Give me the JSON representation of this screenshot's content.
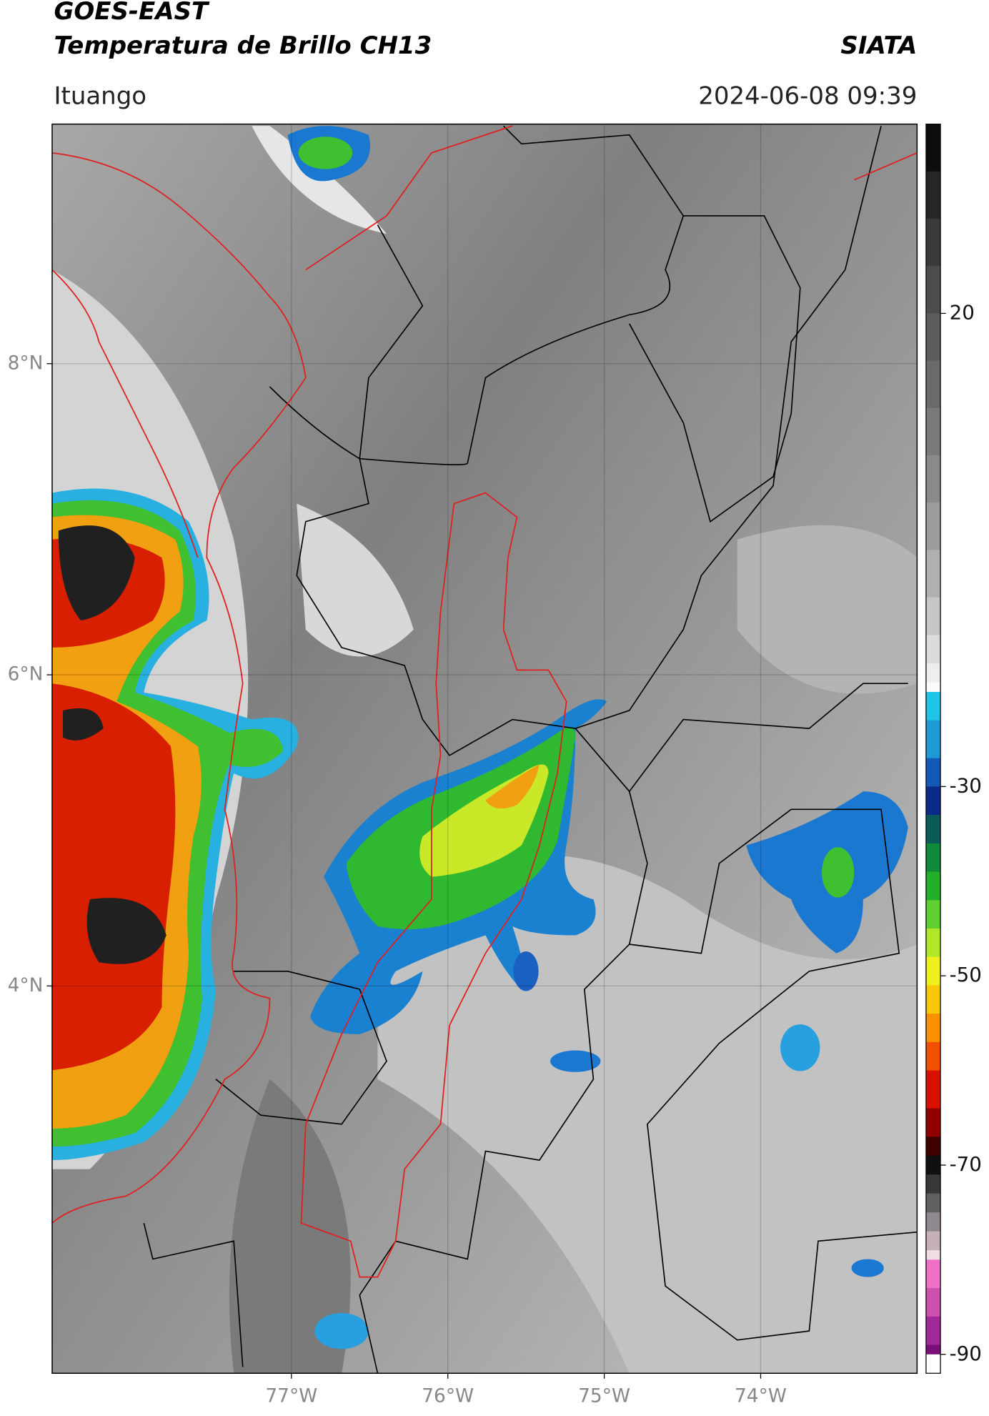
{
  "header": {
    "title": "GOES-EAST",
    "subtitle": "Temperatura de Brillo CH13",
    "source": "SIATA",
    "region": "Ituango",
    "timestamp": "2024-06-08 09:39"
  },
  "map": {
    "xlim": [
      -78.53,
      -73.0
    ],
    "ylim": [
      1.51,
      9.54
    ],
    "xticks": [
      {
        "value": -77,
        "label": "77°W"
      },
      {
        "value": -76,
        "label": "76°W"
      },
      {
        "value": -75,
        "label": "75°W"
      },
      {
        "value": -74,
        "label": "74°W"
      }
    ],
    "yticks": [
      {
        "value": 8,
        "label": "8°N"
      },
      {
        "value": 6,
        "label": "6°N"
      },
      {
        "value": 4,
        "label": "4°N"
      }
    ],
    "grid": true
  },
  "colorbar": {
    "clim": [
      -92,
      40
    ],
    "ticks": [
      20,
      -30,
      -50,
      -70,
      -90
    ],
    "colormap": [
      {
        "value": 40,
        "color": "#0d0d0d"
      },
      {
        "value": 35,
        "color": "#262626"
      },
      {
        "value": 30,
        "color": "#3a3a3a"
      },
      {
        "value": 25,
        "color": "#4c4c4c"
      },
      {
        "value": 20,
        "color": "#5c5c5c"
      },
      {
        "value": 15,
        "color": "#6a6a6a"
      },
      {
        "value": 10,
        "color": "#7a7a7a"
      },
      {
        "value": 5,
        "color": "#8a8a8a"
      },
      {
        "value": 0,
        "color": "#9c9c9c"
      },
      {
        "value": -5,
        "color": "#b0b0b0"
      },
      {
        "value": -10,
        "color": "#c6c6c6"
      },
      {
        "value": -14,
        "color": "#dcdcdc"
      },
      {
        "value": -17,
        "color": "#eeeeee"
      },
      {
        "value": -19,
        "color": "#fbfbfb"
      },
      {
        "value": -20,
        "color": "#20c4e6"
      },
      {
        "value": -23,
        "color": "#1d9ad6"
      },
      {
        "value": -27,
        "color": "#1458b8"
      },
      {
        "value": -30,
        "color": "#0c2a88"
      },
      {
        "value": -33,
        "color": "#0a5a58"
      },
      {
        "value": -36,
        "color": "#0f8a3a"
      },
      {
        "value": -39,
        "color": "#22b02a"
      },
      {
        "value": -42,
        "color": "#60d030"
      },
      {
        "value": -45,
        "color": "#b0e828"
      },
      {
        "value": -48,
        "color": "#f0f020"
      },
      {
        "value": -51,
        "color": "#f8c808"
      },
      {
        "value": -54,
        "color": "#f89000"
      },
      {
        "value": -57,
        "color": "#f05000"
      },
      {
        "value": -60,
        "color": "#d81000"
      },
      {
        "value": -64,
        "color": "#900000"
      },
      {
        "value": -67,
        "color": "#400000"
      },
      {
        "value": -69,
        "color": "#101010"
      },
      {
        "value": -71,
        "color": "#383838"
      },
      {
        "value": -73,
        "color": "#606060"
      },
      {
        "value": -75,
        "color": "#908890"
      },
      {
        "value": -77,
        "color": "#c8b0b8"
      },
      {
        "value": -79,
        "color": "#f0dce4"
      },
      {
        "value": -80,
        "color": "#f070c8"
      },
      {
        "value": -83,
        "color": "#d050b0"
      },
      {
        "value": -86,
        "color": "#a02898"
      },
      {
        "value": -89,
        "color": "#781078"
      },
      {
        "value": -90,
        "color": "#ffffff"
      }
    ]
  }
}
